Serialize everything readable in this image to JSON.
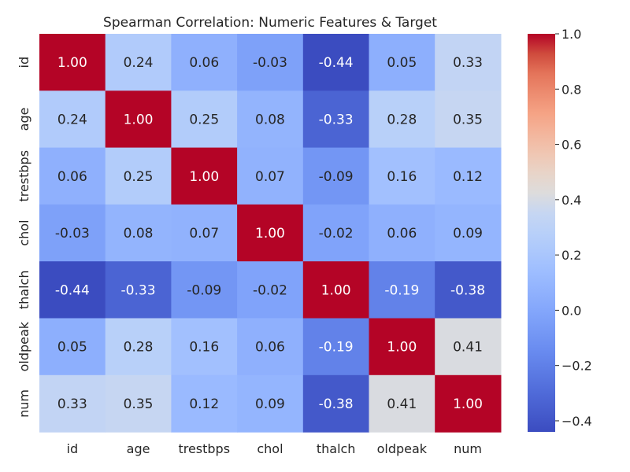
{
  "chart_data": {
    "type": "heatmap",
    "title": "Spearman Correlation: Numeric Features & Target",
    "row_labels": [
      "id",
      "age",
      "trestbps",
      "chol",
      "thalch",
      "oldpeak",
      "num"
    ],
    "col_labels": [
      "id",
      "age",
      "trestbps",
      "chol",
      "thalch",
      "oldpeak",
      "num"
    ],
    "values": [
      [
        1.0,
        0.24,
        0.06,
        -0.03,
        -0.44,
        0.05,
        0.33
      ],
      [
        0.24,
        1.0,
        0.25,
        0.08,
        -0.33,
        0.28,
        0.35
      ],
      [
        0.06,
        0.25,
        1.0,
        0.07,
        -0.09,
        0.16,
        0.12
      ],
      [
        -0.03,
        0.08,
        0.07,
        1.0,
        -0.02,
        0.06,
        0.09
      ],
      [
        -0.44,
        -0.33,
        -0.09,
        -0.02,
        1.0,
        -0.19,
        -0.38
      ],
      [
        0.05,
        0.28,
        0.16,
        0.06,
        -0.19,
        1.0,
        0.41
      ],
      [
        0.33,
        0.35,
        0.12,
        0.09,
        -0.38,
        0.41,
        1.0
      ]
    ],
    "value_format": "0.00",
    "colormap": "coolwarm",
    "vmin": -0.44,
    "vmax": 1.0,
    "colorbar_ticks": [
      "−0.4",
      "−0.2",
      "0.0",
      "0.2",
      "0.4",
      "0.6",
      "0.8",
      "1.0"
    ],
    "colorbar_tick_values": [
      -0.4,
      -0.2,
      0.0,
      0.2,
      0.4,
      0.6,
      0.8,
      1.0
    ],
    "grid": false
  }
}
